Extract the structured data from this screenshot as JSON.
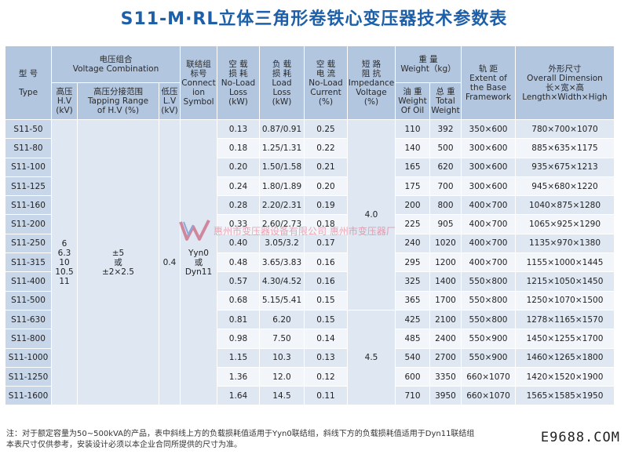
{
  "title": "S11-M·RL立体三角形卷铁心变压器技术参数表",
  "headers": {
    "type": {
      "zh": "型 号",
      "en": "Type"
    },
    "voltage_combination": {
      "zh": "电压组合",
      "en": "Voltage Combination"
    },
    "hv": {
      "zh": "高压",
      "en": "H.V",
      "unit": "(kV)"
    },
    "tapping": {
      "zh": "高压分接范围",
      "en": "Tapping Range",
      "unit": "of H.V (%)"
    },
    "lv": {
      "zh": "低压",
      "en": "L.V",
      "unit": "(kV)"
    },
    "connection": {
      "zh1": "联结组",
      "zh2": "标号",
      "en1": "Connect",
      "en2": "ion",
      "en3": "Symbol"
    },
    "no_load_loss": {
      "zh1": "空 载",
      "zh2": "损 耗",
      "en1": "No-Load",
      "en2": "Loss",
      "unit": "(kW)"
    },
    "load_loss": {
      "zh1": "负 载",
      "zh2": "损 耗",
      "en1": "Load",
      "en2": "Loss",
      "unit": "(kW)"
    },
    "no_load_current": {
      "zh1": "空 载",
      "zh2": "电 流",
      "en1": "No-Load",
      "en2": "Current",
      "unit": "(%)"
    },
    "impedance": {
      "zh1": "短 路",
      "zh2": "阻 抗",
      "en1": "Impedance",
      "en2": "Voltage",
      "unit": "(%)"
    },
    "weight": {
      "zh": "重  量",
      "en": "Weight（kg）"
    },
    "oil_weight": {
      "zh": "油 重",
      "en1": "Weight",
      "en2": "Of Oil"
    },
    "total_weight": {
      "zh": "总 重",
      "en1": "Total",
      "en2": "Weight"
    },
    "gauge": {
      "zh": "轨  距",
      "en1": "Extent of",
      "en2": "the Base",
      "en3": "Framework"
    },
    "dimension": {
      "zh_title": "外形尺寸",
      "en": "Overall Dimension",
      "zh": "长×宽×高",
      "en2": "Length×Width×High"
    }
  },
  "merged": {
    "hv_values": [
      "6",
      "6.3",
      "10",
      "10.5",
      "11"
    ],
    "tapping_l1": "±5",
    "tapping_l2": "或",
    "tapping_l3": "±2×2.5",
    "lv_value": "0.4",
    "connection_l1": "Yyn0",
    "connection_l2": "或",
    "connection_l3": "Dyn11",
    "impedance_low": "4.0",
    "impedance_high": "4.5"
  },
  "rows": [
    {
      "type": "S11-50",
      "no_load_loss": "0.13",
      "load_loss": "0.87/0.91",
      "current": "0.25",
      "oil": "110",
      "total": "392",
      "gauge": "350×600",
      "dim": "780×700×1070"
    },
    {
      "type": "S11-80",
      "no_load_loss": "0.18",
      "load_loss": "1.25/1.31",
      "current": "0.22",
      "oil": "140",
      "total": "500",
      "gauge": "300×600",
      "dim": "885×635×1175"
    },
    {
      "type": "S11-100",
      "no_load_loss": "0.20",
      "load_loss": "1.50/1.58",
      "current": "0.21",
      "oil": "165",
      "total": "620",
      "gauge": "300×600",
      "dim": "935×675×1213"
    },
    {
      "type": "S11-125",
      "no_load_loss": "0.24",
      "load_loss": "1.80/1.89",
      "current": "0.20",
      "oil": "175",
      "total": "700",
      "gauge": "300×600",
      "dim": "945×680×1220"
    },
    {
      "type": "S11-160",
      "no_load_loss": "0.28",
      "load_loss": "2.20/2.31",
      "current": "0.19",
      "oil": "200",
      "total": "800",
      "gauge": "400×700",
      "dim": "1040×875×1280"
    },
    {
      "type": "S11-200",
      "no_load_loss": "0.33",
      "load_loss": "2.60/2.73",
      "current": "0.18",
      "oil": "225",
      "total": "905",
      "gauge": "400×700",
      "dim": "1065×925×1290"
    },
    {
      "type": "S11-250",
      "no_load_loss": "0.40",
      "load_loss": "3.05/3.2",
      "current": "0.17",
      "oil": "240",
      "total": "1020",
      "gauge": "400×700",
      "dim": "1135×970×1380"
    },
    {
      "type": "S11-315",
      "no_load_loss": "0.48",
      "load_loss": "3.65/3.83",
      "current": "0.16",
      "oil": "295",
      "total": "1200",
      "gauge": "400×700",
      "dim": "1155×1000×1445"
    },
    {
      "type": "S11-400",
      "no_load_loss": "0.57",
      "load_loss": "4.30/4.52",
      "current": "0.16",
      "oil": "325",
      "total": "1400",
      "gauge": "550×800",
      "dim": "1215×1050×1450"
    },
    {
      "type": "S11-500",
      "no_load_loss": "0.68",
      "load_loss": "5.15/5.41",
      "current": "0.15",
      "oil": "365",
      "total": "1700",
      "gauge": "550×800",
      "dim": "1250×1070×1500"
    },
    {
      "type": "S11-630",
      "no_load_loss": "0.81",
      "load_loss": "6.20",
      "current": "0.15",
      "oil": "425",
      "total": "2100",
      "gauge": "550×800",
      "dim": "1278×1165×1570"
    },
    {
      "type": "S11-800",
      "no_load_loss": "0.98",
      "load_loss": "7.50",
      "current": "0.14",
      "oil": "485",
      "total": "2400",
      "gauge": "550×900",
      "dim": "1450×1255×1700"
    },
    {
      "type": "S11-1000",
      "no_load_loss": "1.15",
      "load_loss": "10.3",
      "current": "0.13",
      "oil": "540",
      "total": "2700",
      "gauge": "550×900",
      "dim": "1460×1265×1800"
    },
    {
      "type": "S11-1250",
      "no_load_loss": "1.36",
      "load_loss": "12.0",
      "current": "0.12",
      "oil": "600",
      "total": "3350",
      "gauge": "660×1070",
      "dim": "1420×1520×1900"
    },
    {
      "type": "S11-1600",
      "no_load_loss": "1.64",
      "load_loss": "14.5",
      "current": "0.11",
      "oil": "710",
      "total": "3950",
      "gauge": "660×1070",
      "dim": "1565×1585×1950"
    }
  ],
  "watermark": "惠州市变压器设备有限公司  惠州市变压器厂",
  "note": {
    "line1": "注：对于额定容量为50~500kVA的产品，表中斜线上方的负载损耗值适用于Yyn0联结组，斜线下方的负载损耗值适用于Dyn11联结组",
    "line2": "本表尺寸仅供参考，安装设计必须以本企业合同所提供的尺寸为准。"
  },
  "site": "E9688.COM",
  "colors": {
    "title": "#1d5fa8",
    "header_bg": "#b2c6e0",
    "cell_bg": "#dfe7f2",
    "cell_alt_bg": "#f2f6fb",
    "watermark": "#e0607a"
  }
}
